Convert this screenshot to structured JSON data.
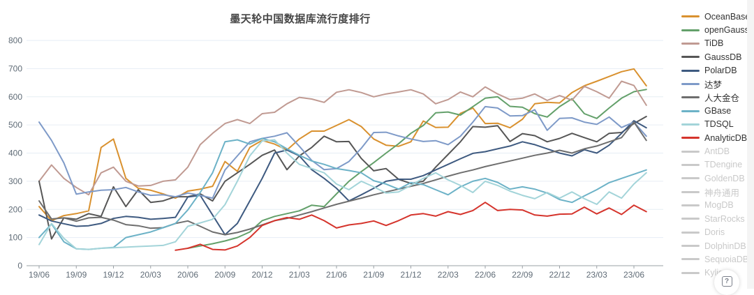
{
  "title": "墨天轮中国数据库流行度排行",
  "help": {
    "icon": "?"
  },
  "legend": {
    "active_label_color": "#333333",
    "disabled_label_color": "#c9c9c9"
  },
  "chart_data": {
    "type": "line",
    "title": "墨天轮中国数据库流行度排行",
    "xlabel": "",
    "ylabel": "",
    "ylim": [
      0,
      800
    ],
    "y_ticks": [
      0,
      100,
      200,
      300,
      400,
      500,
      600,
      700,
      800
    ],
    "grid": true,
    "legend_position": "right",
    "x_tick_every": 3,
    "categories": [
      "19/06",
      "19/07",
      "19/08",
      "19/09",
      "19/10",
      "19/11",
      "19/12",
      "20/01",
      "20/02",
      "20/03",
      "20/04",
      "20/05",
      "20/06",
      "20/07",
      "20/08",
      "20/09",
      "20/10",
      "20/11",
      "20/12",
      "21/01",
      "21/02",
      "21/03",
      "21/04",
      "21/05",
      "21/06",
      "21/07",
      "21/08",
      "21/09",
      "21/10",
      "21/11",
      "21/12",
      "22/01",
      "22/02",
      "22/03",
      "22/04",
      "22/05",
      "22/06",
      "22/07",
      "22/08",
      "22/09",
      "22/10",
      "22/11",
      "22/12",
      "23/01",
      "23/02",
      "23/03",
      "23/04",
      "23/05",
      "23/06",
      "23/07"
    ],
    "x_tick_labels": [
      "19/06",
      "19/09",
      "19/12",
      "20/03",
      "20/06",
      "20/09",
      "20/12",
      "21/03",
      "21/06",
      "21/09",
      "21/12",
      "22/03",
      "22/06",
      "22/09",
      "22/12",
      "23/03",
      "23/06"
    ],
    "series": [
      {
        "name": "OceanBase",
        "color": "#d9912f",
        "enabled": true,
        "values": [
          210,
          160,
          178,
          185,
          195,
          420,
          450,
          310,
          275,
          268,
          255,
          240,
          265,
          272,
          282,
          370,
          335,
          420,
          445,
          432,
          411,
          450,
          478,
          478,
          498,
          519,
          494,
          450,
          428,
          424,
          440,
          514,
          491,
          492,
          541,
          560,
          505,
          506,
          490,
          520,
          575,
          580,
          578,
          615,
          639,
          655,
          672,
          689,
          699,
          639
        ]
      },
      {
        "name": "openGauss",
        "color": "#63a06a",
        "enabled": true,
        "values": [
          null,
          null,
          null,
          null,
          null,
          null,
          null,
          null,
          null,
          null,
          null,
          null,
          62,
          70,
          78,
          88,
          100,
          120,
          160,
          175,
          185,
          195,
          215,
          210,
          255,
          300,
          334,
          366,
          400,
          433,
          470,
          498,
          543,
          546,
          535,
          565,
          595,
          600,
          566,
          563,
          540,
          528,
          565,
          593,
          540,
          523,
          560,
          595,
          618,
          626
        ]
      },
      {
        "name": "TiDB",
        "color": "#c09a92",
        "enabled": true,
        "values": [
          300,
          358,
          310,
          278,
          252,
          330,
          350,
          300,
          283,
          285,
          300,
          305,
          350,
          430,
          470,
          505,
          519,
          505,
          540,
          545,
          575,
          598,
          592,
          580,
          616,
          625,
          615,
          600,
          610,
          617,
          625,
          610,
          575,
          590,
          617,
          600,
          635,
          610,
          590,
          595,
          610,
          587,
          604,
          588,
          637,
          618,
          595,
          655,
          640,
          570
        ]
      },
      {
        "name": "GaussDB",
        "color": "#565656",
        "enabled": true,
        "values": [
          300,
          95,
          170,
          165,
          185,
          175,
          280,
          210,
          270,
          225,
          230,
          245,
          245,
          255,
          230,
          300,
          330,
          360,
          392,
          411,
          341,
          390,
          420,
          460,
          440,
          441,
          381,
          337,
          345,
          307,
          292,
          300,
          350,
          395,
          440,
          494,
          492,
          497,
          441,
          469,
          462,
          440,
          452,
          470,
          455,
          440,
          470,
          473,
          505,
          530
        ]
      },
      {
        "name": "PolarDB",
        "color": "#3e5a80",
        "enabled": true,
        "values": [
          180,
          159,
          149,
          140,
          142,
          150,
          168,
          175,
          172,
          165,
          168,
          172,
          244,
          250,
          180,
          110,
          150,
          230,
          310,
          400,
          411,
          390,
          341,
          310,
          275,
          230,
          252,
          275,
          300,
          307,
          307,
          320,
          340,
          360,
          380,
          399,
          405,
          415,
          425,
          440,
          430,
          415,
          400,
          390,
          412,
          400,
          428,
          470,
          515,
          490
        ]
      },
      {
        "name": "达梦",
        "color": "#7e9ac8",
        "enabled": true,
        "values": [
          510,
          445,
          365,
          254,
          262,
          268,
          270,
          278,
          262,
          250,
          252,
          245,
          258,
          250,
          240,
          340,
          390,
          440,
          452,
          460,
          472,
          424,
          374,
          341,
          345,
          370,
          417,
          473,
          474,
          461,
          450,
          441,
          444,
          430,
          460,
          510,
          565,
          560,
          532,
          533,
          554,
          481,
          523,
          525,
          510,
          502,
          528,
          491,
          510,
          460
        ]
      },
      {
        "name": "人大金仓",
        "color": "#6e6e6e",
        "enabled": true,
        "values": [
          230,
          166,
          170,
          158,
          170,
          172,
          162,
          146,
          142,
          133,
          135,
          150,
          159,
          140,
          120,
          110,
          118,
          130,
          145,
          160,
          168,
          180,
          192,
          205,
          218,
          229,
          240,
          252,
          262,
          272,
          282,
          292,
          305,
          318,
          330,
          340,
          352,
          362,
          372,
          382,
          392,
          400,
          410,
          400,
          415,
          425,
          440,
          455,
          510,
          445
        ]
      },
      {
        "name": "GBase",
        "color": "#6cb2c7",
        "enabled": true,
        "values": [
          100,
          148,
          85,
          60,
          58,
          62,
          65,
          100,
          110,
          120,
          135,
          150,
          198,
          260,
          330,
          440,
          447,
          432,
          452,
          440,
          415,
          392,
          372,
          360,
          345,
          338,
          330,
          302,
          290,
          272,
          295,
          288,
          270,
          252,
          280,
          300,
          310,
          296,
          272,
          280,
          272,
          258,
          235,
          225,
          248,
          270,
          295,
          310,
          325,
          340
        ]
      },
      {
        "name": "TDSQL",
        "color": "#a3d4d9",
        "enabled": true,
        "values": [
          75,
          150,
          97,
          60,
          58,
          62,
          64,
          66,
          68,
          70,
          72,
          85,
          140,
          152,
          165,
          217,
          300,
          390,
          443,
          447,
          400,
          360,
          345,
          330,
          290,
          270,
          300,
          280,
          258,
          262,
          285,
          310,
          330,
          305,
          285,
          260,
          300,
          285,
          265,
          250,
          238,
          260,
          240,
          262,
          238,
          218,
          262,
          240,
          290,
          330
        ]
      },
      {
        "name": "AnalyticDB",
        "color": "#d5342c",
        "enabled": true,
        "values": [
          null,
          null,
          null,
          null,
          null,
          null,
          null,
          null,
          null,
          null,
          null,
          55,
          62,
          76,
          58,
          56,
          70,
          100,
          143,
          160,
          171,
          165,
          180,
          160,
          134,
          145,
          150,
          159,
          143,
          160,
          180,
          185,
          176,
          192,
          182,
          196,
          225,
          196,
          200,
          198,
          180,
          176,
          183,
          184,
          208,
          184,
          205,
          182,
          215,
          192
        ]
      },
      {
        "name": "AntDB",
        "color": "#c9c9c9",
        "enabled": false,
        "values": []
      },
      {
        "name": "TDengine",
        "color": "#c9c9c9",
        "enabled": false,
        "values": []
      },
      {
        "name": "GoldenDB",
        "color": "#c9c9c9",
        "enabled": false,
        "values": []
      },
      {
        "name": "神舟通用",
        "color": "#c9c9c9",
        "enabled": false,
        "values": []
      },
      {
        "name": "MogDB",
        "color": "#c9c9c9",
        "enabled": false,
        "values": []
      },
      {
        "name": "StarRocks",
        "color": "#c9c9c9",
        "enabled": false,
        "values": []
      },
      {
        "name": "Doris",
        "color": "#c9c9c9",
        "enabled": false,
        "values": []
      },
      {
        "name": "DolphinDB",
        "color": "#c9c9c9",
        "enabled": false,
        "values": []
      },
      {
        "name": "SequoiaDB",
        "color": "#c9c9c9",
        "enabled": false,
        "values": []
      },
      {
        "name": "Kylig",
        "color": "#c9c9c9",
        "enabled": false,
        "values": []
      }
    ],
    "colors": {
      "grid_line": "#e6edf4",
      "axis_line": "#9aa0a6",
      "tick_label": "#5f6b76",
      "background": "#ffffff"
    }
  }
}
